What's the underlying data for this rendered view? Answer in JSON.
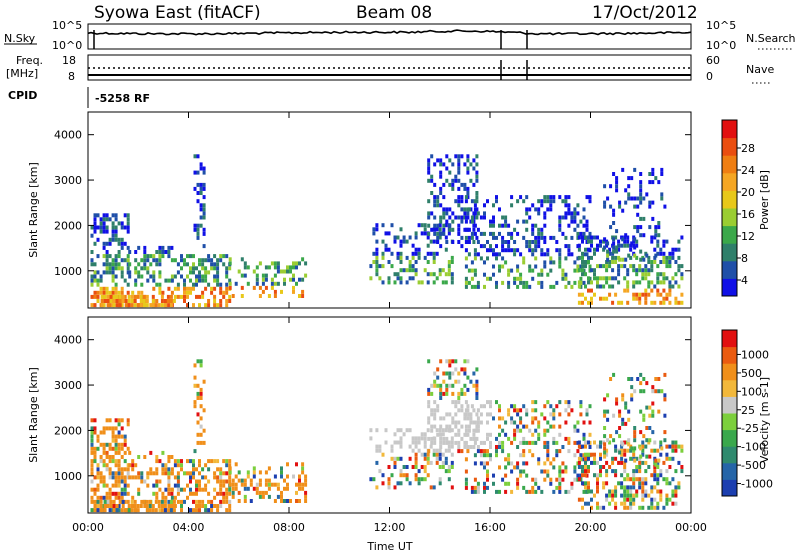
{
  "header": {
    "station": "Syowa East (fitACF)",
    "beam": "Beam 08",
    "date": "17/Oct/2012"
  },
  "top_panels": {
    "nsky_label": "N.Sky",
    "nsearch_label": "N.Search",
    "noise_ticks_left": [
      "10^5",
      "10^0"
    ],
    "noise_ticks_right": [
      "10^5",
      "10^0"
    ],
    "freq_label_top": "Freq.",
    "freq_label_bottom": "[MHz]",
    "freq_ticks": [
      "18",
      "8"
    ],
    "nave_label": "Nave",
    "nave_ticks": [
      "60",
      "0"
    ],
    "cpid_label": "CPID",
    "cpid_value": "-5258 RF"
  },
  "chart_data": [
    {
      "type": "heatmap",
      "name": "power",
      "ylabel": "Slant Range [km]",
      "xlabel": "",
      "xlim": [
        0,
        24
      ],
      "ylim": [
        180,
        4500
      ],
      "y_ticks": [
        1000,
        2000,
        3000,
        4000
      ],
      "x_ticks": [
        "00:00",
        "04:00",
        "08:00",
        "12:00",
        "16:00",
        "20:00",
        "00:00"
      ],
      "colorbar": {
        "label": "Power [dB]",
        "ticks": [
          "4",
          "8",
          "12",
          "16",
          "20",
          "24",
          "28"
        ],
        "colors": [
          "#1010e6",
          "#1f4fa8",
          "#2f7f6a",
          "#3ba84a",
          "#9acd32",
          "#e8c81a",
          "#f5a623",
          "#ef7e12",
          "#ea4e10",
          "#e21010"
        ]
      }
    },
    {
      "type": "heatmap",
      "name": "velocity",
      "ylabel": "Slant Range [km]",
      "xlabel": "Time UT",
      "xlim": [
        0,
        24
      ],
      "ylim": [
        180,
        4500
      ],
      "y_ticks": [
        1000,
        2000,
        3000,
        4000
      ],
      "x_ticks": [
        "00:00",
        "04:00",
        "08:00",
        "12:00",
        "16:00",
        "20:00",
        "00:00"
      ],
      "colorbar": {
        "label": "Velocity [m s-1]",
        "ticks": [
          "1000",
          "500",
          "100",
          "25",
          "-25",
          "-100",
          "-500",
          "-1000"
        ],
        "colors": [
          "#1c3fb0",
          "#2565a8",
          "#2f8a6e",
          "#3aa84c",
          "#7ccf3c",
          "#c8c8c8",
          "#f2b83b",
          "#f08f1a",
          "#ea5b10",
          "#e21010"
        ]
      }
    }
  ]
}
